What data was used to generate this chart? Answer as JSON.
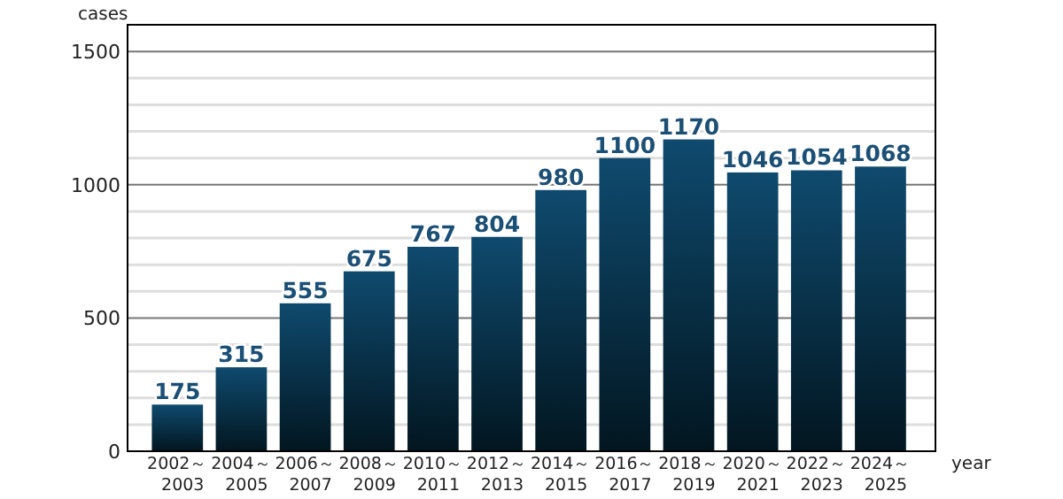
{
  "chart_data": {
    "type": "bar",
    "ylabel": "cases",
    "xlabel": "year",
    "categories": [
      "2002～\n2003",
      "2004～\n2005",
      "2006～\n2007",
      "2008～\n2009",
      "2010～\n2011",
      "2012～\n2013",
      "2014～\n2015",
      "2016～\n2017",
      "2018～\n2019",
      "2020～\n2021",
      "2022～\n2023",
      "2024～\n2025"
    ],
    "values": [
      175,
      315,
      555,
      675,
      767,
      804,
      980,
      1100,
      1170,
      1046,
      1054,
      1068
    ],
    "color": "#0f4a6e",
    "data_labels": true,
    "grid": "y",
    "ylim": [
      0,
      1600
    ],
    "yticks": [
      0,
      {
        "value": 100,
        "label": null
      },
      {
        "value": 200,
        "label": null
      },
      {
        "value": 300,
        "label": null
      },
      {
        "value": 400,
        "label": null
      },
      500,
      {
        "value": 600,
        "label": null
      },
      {
        "value": 700,
        "label": null
      },
      {
        "value": 800,
        "label": null
      },
      {
        "value": 900,
        "label": null
      },
      1000,
      {
        "value": 1100,
        "label": null
      },
      {
        "value": 1200,
        "label": null
      },
      {
        "value": 1300,
        "label": null
      },
      {
        "value": 1400,
        "label": null
      },
      1500
    ]
  }
}
